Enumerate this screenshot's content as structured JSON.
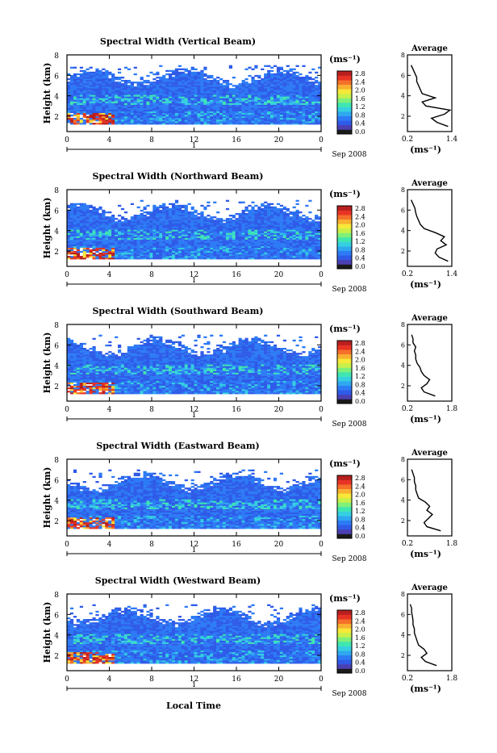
{
  "figure": {
    "xlabel": "Local Time"
  },
  "colorbar": {
    "unit_label": "(ms⁻¹)",
    "colors": [
      "#1a1a1a",
      "#4b3fb3",
      "#2f5be8",
      "#2d7bf5",
      "#2fa8f0",
      "#35d0e0",
      "#3fe6b0",
      "#7ff07a",
      "#c8f04a",
      "#f7e839",
      "#f9b030",
      "#f5702a",
      "#e83324",
      "#b81f1f"
    ]
  },
  "chart_data": [
    {
      "type": "heatmap",
      "title": "Spectral Width (Vertical Beam)",
      "ylabel": "Height (km)",
      "xlim": [
        0,
        24
      ],
      "ylim": [
        0.5,
        8
      ],
      "x_ticks": [
        "0",
        "4",
        "8",
        "12",
        "16",
        "20",
        "0"
      ],
      "y_ticks": [
        "2",
        "4",
        "6",
        "8"
      ],
      "date_ticks": [
        "1"
      ],
      "date_label": "Sep 2008",
      "colorbar": {
        "ticks": [
          "0.0",
          "0.4",
          "0.8",
          "1.2",
          "1.6",
          "2.0",
          "2.4",
          "2.8"
        ]
      },
      "profile": {
        "title": "Average",
        "xlabel": "(ms⁻¹)",
        "x_ticks": [
          "0.2",
          "1.4"
        ],
        "xlim": [
          0.2,
          1.4
        ],
        "y_ticks": [
          "2",
          "4",
          "6",
          "8"
        ],
        "ylim": [
          0.5,
          8
        ],
        "height": [
          1.0,
          1.4,
          1.8,
          2.2,
          2.6,
          3.0,
          3.4,
          3.8,
          4.2,
          4.6,
          5.0,
          5.4,
          5.8,
          6.2,
          6.6,
          7.0
        ],
        "width": [
          1.3,
          1.0,
          0.85,
          1.2,
          1.35,
          0.7,
          0.6,
          0.95,
          0.6,
          0.55,
          0.5,
          0.45,
          0.45,
          0.4,
          0.35,
          0.3
        ]
      }
    },
    {
      "type": "heatmap",
      "title": "Spectral Width (Northward Beam)",
      "ylabel": "Height (km)",
      "xlim": [
        0,
        24
      ],
      "ylim": [
        0.5,
        8
      ],
      "x_ticks": [
        "0",
        "4",
        "8",
        "12",
        "16",
        "20",
        "0"
      ],
      "y_ticks": [
        "2",
        "4",
        "6",
        "8"
      ],
      "date_ticks": [
        "1"
      ],
      "date_label": "Sep 2008",
      "colorbar": {
        "ticks": [
          "0.0",
          "0.4",
          "0.8",
          "1.2",
          "1.6",
          "2.0",
          "2.4",
          "2.8"
        ]
      },
      "profile": {
        "title": "Average",
        "xlabel": "(ms⁻¹)",
        "x_ticks": [
          "0.2",
          "1.4"
        ],
        "xlim": [
          0.2,
          1.4
        ],
        "y_ticks": [
          "2",
          "4",
          "6",
          "8"
        ],
        "ylim": [
          0.5,
          8
        ],
        "height": [
          1.0,
          1.4,
          1.8,
          2.2,
          2.6,
          3.0,
          3.4,
          3.8,
          4.2,
          4.6,
          5.0,
          5.4,
          5.8,
          6.2,
          6.6,
          7.0
        ],
        "width": [
          1.3,
          1.05,
          0.95,
          1.0,
          1.25,
          1.1,
          1.2,
          0.95,
          0.65,
          0.55,
          0.5,
          0.45,
          0.42,
          0.4,
          0.35,
          0.3
        ]
      }
    },
    {
      "type": "heatmap",
      "title": "Spectral Width (Southward Beam)",
      "ylabel": "Height (km)",
      "xlim": [
        0,
        24
      ],
      "ylim": [
        0.5,
        8
      ],
      "x_ticks": [
        "0",
        "4",
        "8",
        "12",
        "16",
        "20",
        "0"
      ],
      "y_ticks": [
        "2",
        "4",
        "6",
        "8"
      ],
      "date_ticks": [
        "1"
      ],
      "date_label": "Sep 2008",
      "colorbar": {
        "ticks": [
          "0.0",
          "0.4",
          "0.8",
          "1.2",
          "1.6",
          "2.0",
          "2.4",
          "2.8"
        ]
      },
      "profile": {
        "title": "Average",
        "xlabel": "(ms⁻¹)",
        "x_ticks": [
          "0.2",
          "1.8"
        ],
        "xlim": [
          0.2,
          1.8
        ],
        "y_ticks": [
          "2",
          "4",
          "6",
          "8"
        ],
        "ylim": [
          0.5,
          8
        ],
        "height": [
          1.0,
          1.4,
          1.8,
          2.2,
          2.6,
          3.0,
          3.4,
          3.8,
          4.2,
          4.6,
          5.0,
          5.4,
          5.8,
          6.2,
          6.6,
          7.0
        ],
        "width": [
          1.2,
          0.8,
          0.7,
          0.9,
          1.0,
          0.8,
          0.7,
          0.65,
          0.55,
          0.5,
          0.5,
          0.45,
          0.5,
          0.4,
          0.4,
          0.35
        ]
      }
    },
    {
      "type": "heatmap",
      "title": "Spectral Width (Eastward Beam)",
      "ylabel": "Height (km)",
      "xlim": [
        0,
        24
      ],
      "ylim": [
        0.5,
        8
      ],
      "x_ticks": [
        "0",
        "4",
        "8",
        "12",
        "16",
        "20",
        "0"
      ],
      "y_ticks": [
        "2",
        "4",
        "6",
        "8"
      ],
      "date_ticks": [
        "1"
      ],
      "date_label": "Sep 2008",
      "colorbar": {
        "ticks": [
          "0.0",
          "0.4",
          "0.8",
          "1.2",
          "1.6",
          "2.0",
          "2.4",
          "2.8"
        ]
      },
      "profile": {
        "title": "Average",
        "xlabel": "(ms⁻¹)",
        "x_ticks": [
          "0.2",
          "1.8"
        ],
        "xlim": [
          0.2,
          1.8
        ],
        "y_ticks": [
          "2",
          "4",
          "6",
          "8"
        ],
        "ylim": [
          0.5,
          8
        ],
        "height": [
          1.0,
          1.4,
          1.8,
          2.2,
          2.6,
          3.0,
          3.4,
          3.8,
          4.2,
          4.6,
          5.0,
          5.4,
          5.8,
          6.2,
          6.6,
          7.0
        ],
        "width": [
          1.4,
          0.9,
          0.8,
          0.95,
          1.1,
          0.9,
          1.0,
          0.85,
          0.6,
          0.55,
          0.5,
          0.5,
          0.45,
          0.45,
          0.4,
          0.35
        ]
      }
    },
    {
      "type": "heatmap",
      "title": "Spectral Width (Westward Beam)",
      "ylabel": "Height (km)",
      "xlim": [
        0,
        24
      ],
      "ylim": [
        0.5,
        8
      ],
      "x_ticks": [
        "0",
        "4",
        "8",
        "12",
        "16",
        "20",
        "0"
      ],
      "y_ticks": [
        "2",
        "4",
        "6",
        "8"
      ],
      "date_ticks": [
        "1"
      ],
      "date_label": "Sep 2008",
      "colorbar": {
        "ticks": [
          "0.0",
          "0.4",
          "0.8",
          "1.2",
          "1.6",
          "2.0",
          "2.4",
          "2.8"
        ]
      },
      "profile": {
        "title": "Average",
        "xlabel": "(ms⁻¹)",
        "x_ticks": [
          "0.2",
          "1.8"
        ],
        "xlim": [
          0.2,
          1.8
        ],
        "y_ticks": [
          "2",
          "4",
          "6",
          "8"
        ],
        "ylim": [
          0.5,
          8
        ],
        "height": [
          1.0,
          1.4,
          1.8,
          2.2,
          2.6,
          3.0,
          3.4,
          3.8,
          4.2,
          4.6,
          5.0,
          5.4,
          5.8,
          6.2,
          6.6,
          7.0
        ],
        "width": [
          1.25,
          0.85,
          0.7,
          0.9,
          0.8,
          0.6,
          0.55,
          0.5,
          0.45,
          0.45,
          0.4,
          0.4,
          0.38,
          0.35,
          0.35,
          0.3
        ]
      }
    }
  ]
}
